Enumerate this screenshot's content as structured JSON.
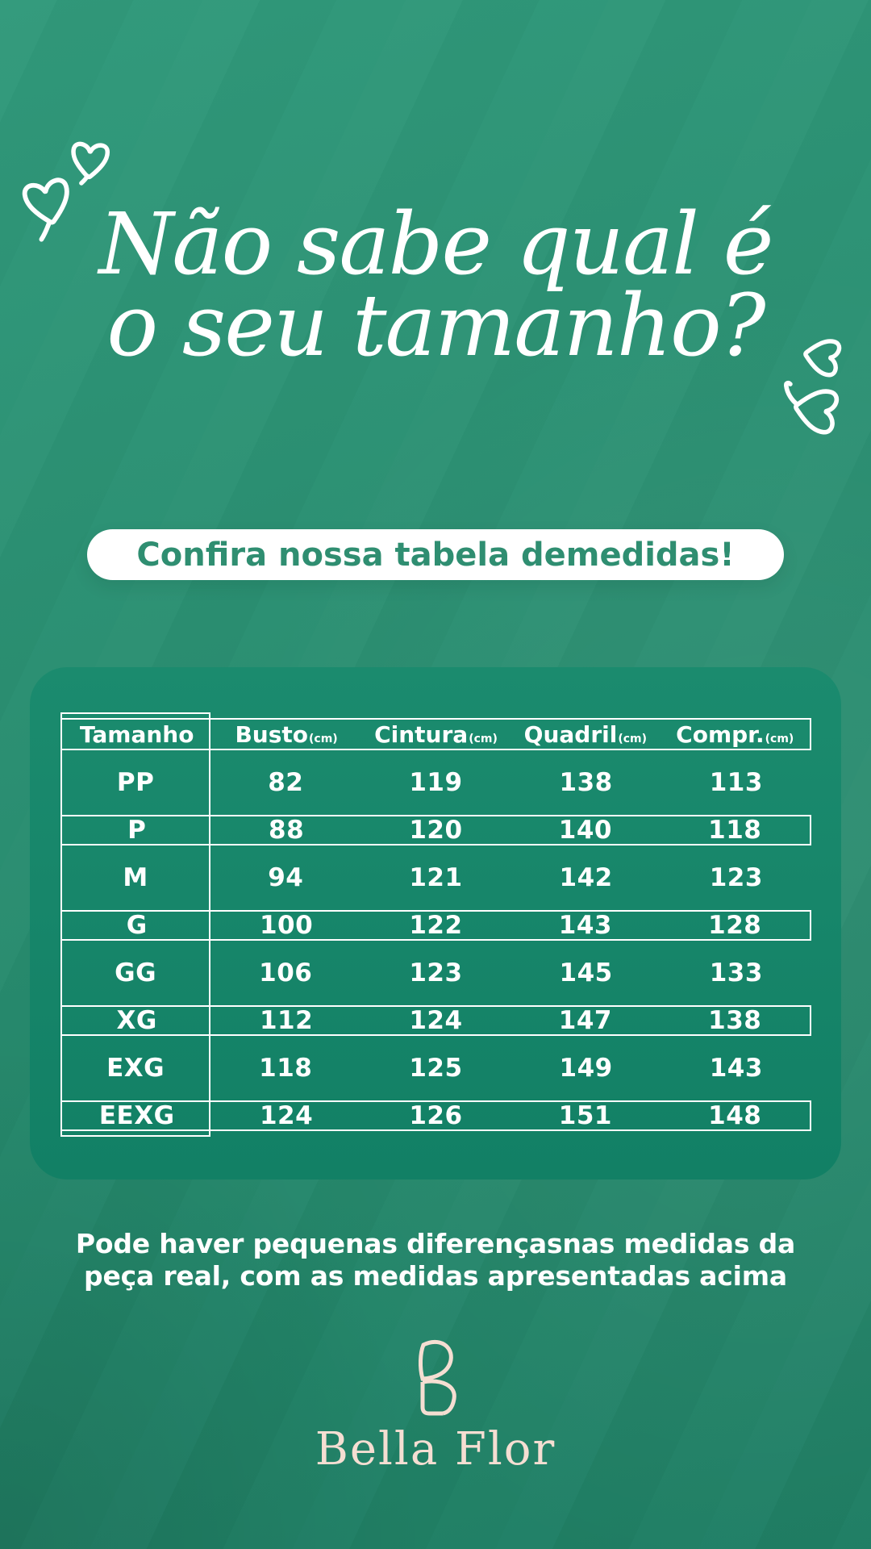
{
  "title": {
    "line1": "Não sabe qual é",
    "line2": "o seu tamanho?"
  },
  "cta": {
    "prefix": "Confira nossa tabela de ",
    "highlight": "medidas",
    "suffix": "!"
  },
  "table": {
    "columns": [
      {
        "key": "tamanho",
        "label": "Tamanho",
        "unit": ""
      },
      {
        "key": "busto",
        "label": "Busto",
        "unit": "(cm)"
      },
      {
        "key": "cintura",
        "label": "Cintura",
        "unit": "(cm)"
      },
      {
        "key": "quadril",
        "label": "Quadril",
        "unit": "(cm)"
      },
      {
        "key": "compr",
        "label": "Compr.",
        "unit": "(cm)"
      }
    ],
    "rows": [
      {
        "size": "PP",
        "values": [
          "82",
          "119",
          "138",
          "113"
        ],
        "boxed": false
      },
      {
        "size": "P",
        "values": [
          "88",
          "120",
          "140",
          "118"
        ],
        "boxed": true
      },
      {
        "size": "M",
        "values": [
          "94",
          "121",
          "142",
          "123"
        ],
        "boxed": false
      },
      {
        "size": "G",
        "values": [
          "100",
          "122",
          "143",
          "128"
        ],
        "boxed": true
      },
      {
        "size": "GG",
        "values": [
          "106",
          "123",
          "145",
          "133"
        ],
        "boxed": false
      },
      {
        "size": "XG",
        "values": [
          "112",
          "124",
          "147",
          "138"
        ],
        "boxed": true
      },
      {
        "size": "EXG",
        "values": [
          "118",
          "125",
          "149",
          "143"
        ],
        "boxed": false
      },
      {
        "size": "EEXG",
        "values": [
          "124",
          "126",
          "151",
          "148"
        ],
        "boxed": true
      }
    ]
  },
  "chart_data": {
    "type": "table",
    "title": "Confira nossa tabela de medidas!",
    "columns": [
      "Tamanho",
      "Busto (cm)",
      "Cintura (cm)",
      "Quadril (cm)",
      "Compr. (cm)"
    ],
    "rows": [
      [
        "PP",
        82,
        119,
        138,
        113
      ],
      [
        "P",
        88,
        120,
        140,
        118
      ],
      [
        "M",
        94,
        121,
        142,
        123
      ],
      [
        "G",
        100,
        122,
        143,
        128
      ],
      [
        "GG",
        106,
        123,
        145,
        133
      ],
      [
        "XG",
        112,
        124,
        147,
        138
      ],
      [
        "EXG",
        118,
        125,
        149,
        143
      ],
      [
        "EEXG",
        124,
        126,
        151,
        148
      ]
    ]
  },
  "note": {
    "line1": "Pode haver pequenas diferençasnas medidas da",
    "line2": "peça real, com as medidas apresentadas acima"
  },
  "brand": {
    "name": "Bella Flor"
  },
  "colors": {
    "background": "#2B8F72",
    "background_light": "#31997B",
    "panel": "#17866A",
    "pill_text": "#2F8E71",
    "cream": "#F5DED2",
    "table_lines": "#FFFFFF"
  }
}
